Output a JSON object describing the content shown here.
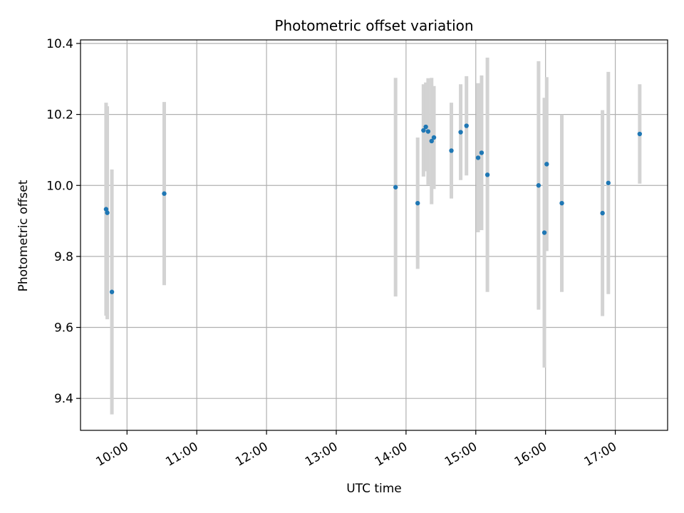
{
  "chart_data": {
    "type": "scatter",
    "title": "Photometric offset variation",
    "xlabel": "UTC time",
    "ylabel": "Photometric offset",
    "xlim": [
      "09:20",
      "17:45"
    ],
    "ylim": [
      9.31,
      10.41
    ],
    "x_ticks": [
      "10:00",
      "11:00",
      "12:00",
      "13:00",
      "14:00",
      "15:00",
      "16:00",
      "17:00"
    ],
    "y_ticks": [
      9.4,
      9.6,
      9.8,
      10.0,
      10.2,
      10.4
    ],
    "y_tick_labels": [
      "9.4",
      "9.6",
      "9.8",
      "10.0",
      "10.2",
      "10.4"
    ],
    "grid": true,
    "colors": {
      "marker": "#1f77b4",
      "errorbar": "#d3d3d3",
      "grid": "#b0b0b0"
    },
    "points": [
      {
        "x": "09:42",
        "y": 9.933,
        "yerr": 0.3
      },
      {
        "x": "09:43",
        "y": 9.923,
        "yerr": 0.3
      },
      {
        "x": "09:47",
        "y": 9.7,
        "yerr": 0.345
      },
      {
        "x": "10:32",
        "y": 9.977,
        "yerr": 0.258
      },
      {
        "x": "13:51",
        "y": 9.995,
        "yerr": 0.308
      },
      {
        "x": "14:10",
        "y": 9.95,
        "yerr": 0.185
      },
      {
        "x": "14:15",
        "y": 10.155,
        "yerr": 0.13
      },
      {
        "x": "14:17",
        "y": 10.165,
        "yerr": 0.125
      },
      {
        "x": "14:19",
        "y": 10.152,
        "yerr": 0.15
      },
      {
        "x": "14:22",
        "y": 10.125,
        "yerr": 0.178
      },
      {
        "x": "14:24",
        "y": 10.135,
        "yerr": 0.145
      },
      {
        "x": "14:39",
        "y": 10.098,
        "yerr": 0.135
      },
      {
        "x": "14:47",
        "y": 10.15,
        "yerr": 0.135
      },
      {
        "x": "14:52",
        "y": 10.168,
        "yerr": 0.14
      },
      {
        "x": "15:02",
        "y": 10.078,
        "yerr": 0.21
      },
      {
        "x": "15:05",
        "y": 10.092,
        "yerr": 0.218
      },
      {
        "x": "15:10",
        "y": 10.03,
        "yerr": 0.33
      },
      {
        "x": "15:54",
        "y": 10.0,
        "yerr": 0.35
      },
      {
        "x": "15:59",
        "y": 9.867,
        "yerr": 0.38
      },
      {
        "x": "16:01",
        "y": 10.06,
        "yerr": 0.245
      },
      {
        "x": "16:14",
        "y": 9.95,
        "yerr": 0.25
      },
      {
        "x": "16:49",
        "y": 9.922,
        "yerr": 0.29
      },
      {
        "x": "16:54",
        "y": 10.007,
        "yerr": 0.313
      },
      {
        "x": "17:21",
        "y": 10.145,
        "yerr": 0.14
      }
    ]
  }
}
